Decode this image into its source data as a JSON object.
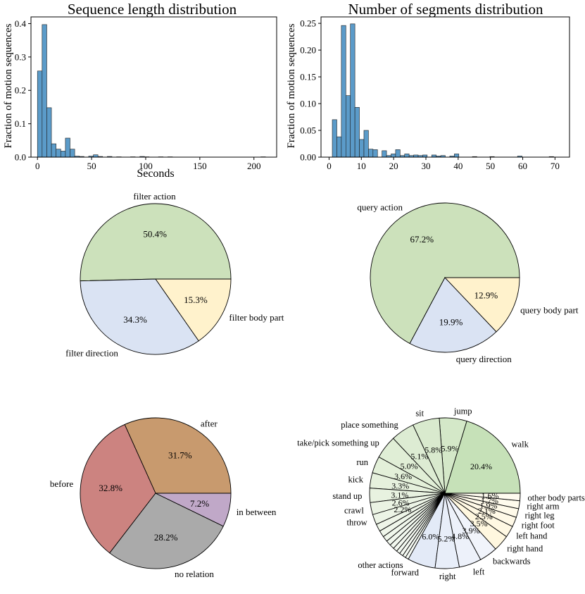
{
  "chart_data": [
    {
      "type": "bar",
      "title": "Sequence length distribution",
      "xlabel": "Seconds",
      "ylabel": "Fraction of motion sequences",
      "xlim": [
        -6,
        221
      ],
      "ylim": [
        0,
        0.42
      ],
      "xticks": [
        "0",
        "50",
        "100",
        "150",
        "200"
      ],
      "xtick_values": [
        0,
        50,
        100,
        150,
        200
      ],
      "yticks": [
        "0.0",
        "0.1",
        "0.2",
        "0.3",
        "0.4"
      ],
      "ytick_values": [
        0,
        0.1,
        0.2,
        0.3,
        0.4
      ],
      "bar_color": "#5b9bc9",
      "bars": [
        {
          "x0": 0,
          "x1": 4.3,
          "v": 0.258
        },
        {
          "x0": 4.3,
          "x1": 8.6,
          "v": 0.397
        },
        {
          "x0": 8.6,
          "x1": 12.9,
          "v": 0.148
        },
        {
          "x0": 12.9,
          "x1": 17.2,
          "v": 0.04
        },
        {
          "x0": 17.2,
          "x1": 21.5,
          "v": 0.024
        },
        {
          "x0": 21.5,
          "x1": 25.8,
          "v": 0.018
        },
        {
          "x0": 25.8,
          "x1": 30.1,
          "v": 0.057
        },
        {
          "x0": 30.1,
          "x1": 34.4,
          "v": 0.024
        },
        {
          "x0": 34.4,
          "x1": 38.7,
          "v": 0.003
        },
        {
          "x0": 38.7,
          "x1": 43,
          "v": 0.002
        },
        {
          "x0": 47.3,
          "x1": 51.6,
          "v": 0.003
        },
        {
          "x0": 51.6,
          "x1": 55.9,
          "v": 0.007
        },
        {
          "x0": 55.9,
          "x1": 60.2,
          "v": 0.002
        },
        {
          "x0": 64.5,
          "x1": 68.8,
          "v": 0.002
        },
        {
          "x0": 73.1,
          "x1": 77.4,
          "v": 0.001
        },
        {
          "x0": 86,
          "x1": 90.3,
          "v": 0.001
        },
        {
          "x0": 94.6,
          "x1": 98.9,
          "v": 0.002
        },
        {
          "x0": 98.9,
          "x1": 103.2,
          "v": 0.001
        },
        {
          "x0": 111.8,
          "x1": 116.1,
          "v": 0.001
        },
        {
          "x0": 120.4,
          "x1": 124.7,
          "v": 0.001
        },
        {
          "x0": 206.4,
          "x1": 210.7,
          "v": 0.001
        }
      ]
    },
    {
      "type": "bar",
      "title": "Number of segments distribution",
      "xlabel": "",
      "ylabel": "Fraction of motion sequences",
      "xlim": [
        -2.5,
        74.5
      ],
      "ylim": [
        0,
        0.262
      ],
      "xticks": [
        "0",
        "10",
        "20",
        "30",
        "40",
        "50",
        "60",
        "70"
      ],
      "xtick_values": [
        0,
        10,
        20,
        30,
        40,
        50,
        60,
        70
      ],
      "yticks": [
        "0.00",
        "0.05",
        "0.10",
        "0.15",
        "0.20",
        "0.25"
      ],
      "ytick_values": [
        0,
        0.05,
        0.1,
        0.15,
        0.2,
        0.25
      ],
      "bar_color": "#5b9bc9",
      "bars": [
        {
          "x0": 1,
          "x1": 2.4,
          "v": 0.07
        },
        {
          "x0": 2.4,
          "x1": 3.8,
          "v": 0.038
        },
        {
          "x0": 3.8,
          "x1": 5.2,
          "v": 0.246
        },
        {
          "x0": 5.2,
          "x1": 6.6,
          "v": 0.115
        },
        {
          "x0": 6.6,
          "x1": 8,
          "v": 0.249
        },
        {
          "x0": 8,
          "x1": 9.4,
          "v": 0.093
        },
        {
          "x0": 9.4,
          "x1": 10.8,
          "v": 0.033
        },
        {
          "x0": 10.8,
          "x1": 12.2,
          "v": 0.05
        },
        {
          "x0": 12.2,
          "x1": 13.6,
          "v": 0.015
        },
        {
          "x0": 13.6,
          "x1": 15,
          "v": 0.014
        },
        {
          "x0": 16.4,
          "x1": 17.8,
          "v": 0.012
        },
        {
          "x0": 17.8,
          "x1": 19.2,
          "v": 0.003
        },
        {
          "x0": 19.2,
          "x1": 20.6,
          "v": 0.006
        },
        {
          "x0": 20.6,
          "x1": 22,
          "v": 0.014
        },
        {
          "x0": 22,
          "x1": 23.4,
          "v": 0.003
        },
        {
          "x0": 23.4,
          "x1": 24.8,
          "v": 0.006
        },
        {
          "x0": 24.8,
          "x1": 26.2,
          "v": 0.003
        },
        {
          "x0": 26.2,
          "x1": 27.6,
          "v": 0.004
        },
        {
          "x0": 27.6,
          "x1": 29,
          "v": 0.003
        },
        {
          "x0": 29,
          "x1": 30.4,
          "v": 0.004
        },
        {
          "x0": 31.8,
          "x1": 33.2,
          "v": 0.004
        },
        {
          "x0": 33.2,
          "x1": 34.6,
          "v": 0.002
        },
        {
          "x0": 34.6,
          "x1": 36,
          "v": 0.003
        },
        {
          "x0": 37.4,
          "x1": 38.8,
          "v": 0.002
        },
        {
          "x0": 38.8,
          "x1": 40.2,
          "v": 0.006
        },
        {
          "x0": 44.4,
          "x1": 45.8,
          "v": 0.001
        },
        {
          "x0": 49.8,
          "x1": 51.2,
          "v": 0.001
        },
        {
          "x0": 58.4,
          "x1": 59.8,
          "v": 0.002
        },
        {
          "x0": 68.2,
          "x1": 69.6,
          "v": 0.001
        }
      ]
    },
    {
      "type": "pie",
      "title": "",
      "start_angle_deg": 0,
      "slices": [
        {
          "label": "filter action",
          "value": 50.4,
          "pct": "50.4%",
          "color": "#cce1bb"
        },
        {
          "label": "filter direction",
          "value": 34.3,
          "pct": "34.3%",
          "color": "#dae3f3"
        },
        {
          "label": "filter body part",
          "value": 15.3,
          "pct": "15.3%",
          "color": "#fff2cc"
        }
      ]
    },
    {
      "type": "pie",
      "title": "",
      "start_angle_deg": 0,
      "slices": [
        {
          "label": "query action",
          "value": 67.2,
          "pct": "67.2%",
          "color": "#cce1bb"
        },
        {
          "label": "query direction",
          "value": 19.9,
          "pct": "19.9%",
          "color": "#dae3f3"
        },
        {
          "label": "query body part",
          "value": 12.9,
          "pct": "12.9%",
          "color": "#fff2cc"
        }
      ]
    },
    {
      "type": "pie",
      "title": "",
      "start_angle_deg": 0,
      "slices": [
        {
          "label": "after",
          "value": 31.7,
          "pct": "31.7%",
          "color": "#c89a6e"
        },
        {
          "label": "before",
          "value": 32.8,
          "pct": "32.8%",
          "color": "#cc8380"
        },
        {
          "label": "no relation",
          "value": 28.2,
          "pct": "28.2%",
          "color": "#aaaaaa"
        },
        {
          "label": "in between",
          "value": 7.2,
          "pct": "7.2%",
          "color": "#c0a8c8"
        }
      ]
    },
    {
      "type": "pie",
      "title": "",
      "start_angle_deg": 0,
      "slices": [
        {
          "label": "walk",
          "value": 20.4,
          "pct": "20.4%",
          "color": "#c6e1b8"
        },
        {
          "label": "jump",
          "value": 5.9,
          "pct": "5.9%",
          "color": "#d4e8c8"
        },
        {
          "label": "sit",
          "value": 5.8,
          "pct": "5.8%",
          "color": "#d9eace"
        },
        {
          "label": "place something",
          "value": 5.1,
          "pct": "5.1%",
          "color": "#ddecd3"
        },
        {
          "label": "take/pick something up",
          "value": 5.0,
          "pct": "5.0%",
          "color": "#e0eed6"
        },
        {
          "label": "run",
          "value": 3.6,
          "pct": "3.6%",
          "color": "#e3f0d9"
        },
        {
          "label": "kick",
          "value": 3.3,
          "pct": "3.3%",
          "color": "#e6f1dd"
        },
        {
          "label": "stand up",
          "value": 3.1,
          "pct": "3.1%",
          "color": "#e8f2e0"
        },
        {
          "label": "crawl",
          "value": 2.6,
          "pct": "2.6%",
          "color": "#eaf3e3"
        },
        {
          "label": "throw",
          "value": 2.2,
          "pct": "2.2%",
          "color": "#ecf4e6"
        },
        {
          "label": "",
          "value": 1.6,
          "pct": "",
          "color": "#eef5e8"
        },
        {
          "label": "",
          "value": 1.4,
          "pct": "",
          "color": "#eff6ea"
        },
        {
          "label": "",
          "value": 1.2,
          "pct": "",
          "color": "#f0f7ec"
        },
        {
          "label": "",
          "value": 1.1,
          "pct": "",
          "color": "#f1f7ee"
        },
        {
          "label": "",
          "value": 1.0,
          "pct": "",
          "color": "#f2f8ef"
        },
        {
          "label": "",
          "value": 0.9,
          "pct": "",
          "color": "#f3f8f0"
        },
        {
          "label": "",
          "value": 0.8,
          "pct": "",
          "color": "#f4f9f1"
        },
        {
          "label": "",
          "value": 0.8,
          "pct": "",
          "color": "#f5f9f2"
        },
        {
          "label": "",
          "value": 0.7,
          "pct": "",
          "color": "#f5faf3"
        },
        {
          "label": "other actions",
          "value": 0.7,
          "pct": "",
          "color": "#f6faf4"
        },
        {
          "label": "forward",
          "value": 6.0,
          "pct": "6.0%",
          "color": "#e3eaf7"
        },
        {
          "label": "right",
          "value": 5.2,
          "pct": "5.2%",
          "color": "#e8eef9"
        },
        {
          "label": "left",
          "value": 4.8,
          "pct": "4.8%",
          "color": "#edf1fa"
        },
        {
          "label": "backwards",
          "value": 3.9,
          "pct": "3.9%",
          "color": "#f1f4fb"
        },
        {
          "label": "right hand",
          "value": 3.5,
          "pct": "3.5%",
          "color": "#fff7df"
        },
        {
          "label": "left hand",
          "value": 2.5,
          "pct": "2.5%",
          "color": "#fff8e3"
        },
        {
          "label": "right foot",
          "value": 2.1,
          "pct": "2.1%",
          "color": "#fff9e7"
        },
        {
          "label": "right leg",
          "value": 1.9,
          "pct": "1.9%",
          "color": "#fffaea"
        },
        {
          "label": "right arm",
          "value": 1.7,
          "pct": "1.7%",
          "color": "#fffbed"
        },
        {
          "label": "other body parts",
          "value": 1.6,
          "pct": "1.6%",
          "color": "#fffcf0"
        }
      ]
    }
  ]
}
